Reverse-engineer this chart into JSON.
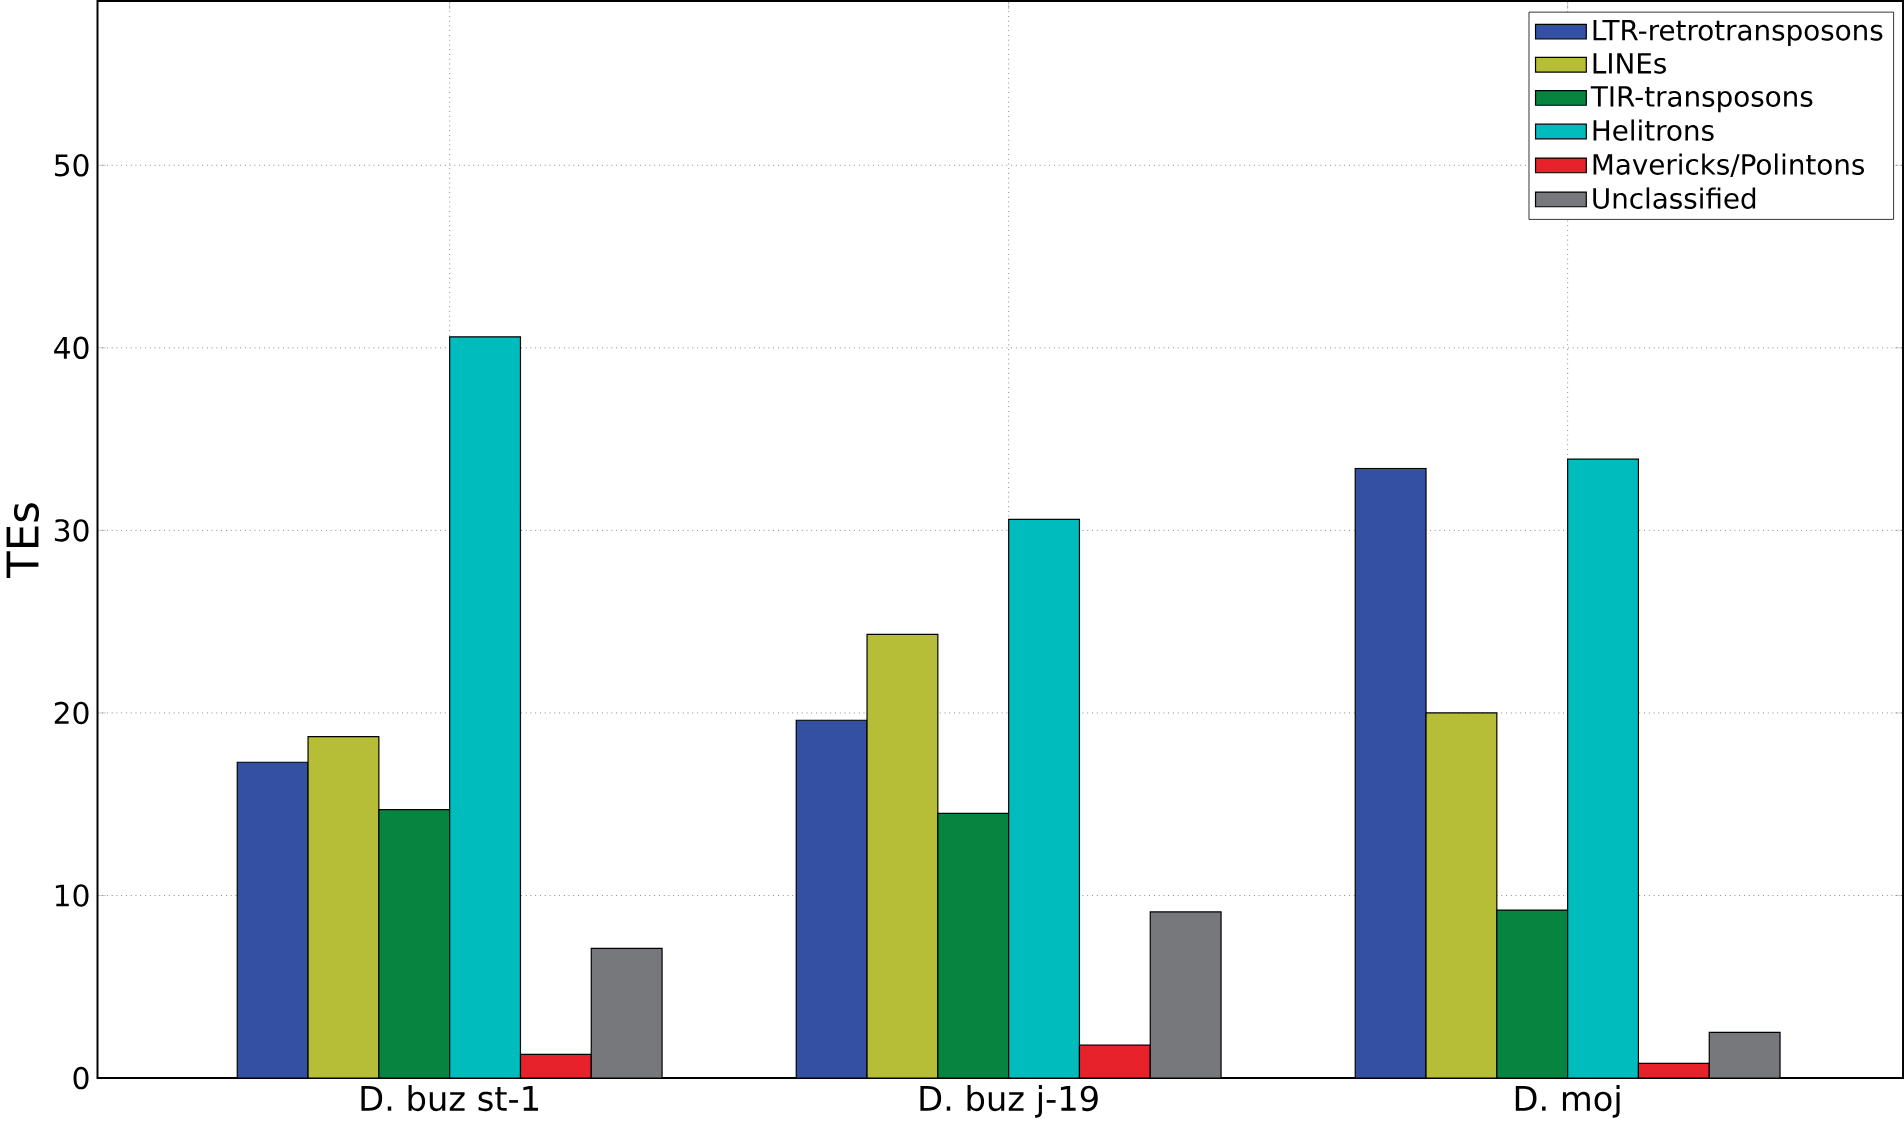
{
  "chart_data": {
    "type": "bar",
    "ylabel": "TEs",
    "categories": [
      "D. buz st-1",
      "D. buz j-19",
      "D. moj"
    ],
    "series": [
      {
        "name": "LTR-retrotransposons",
        "color": "#3450a3",
        "values": [
          17.3,
          19.6,
          33.4
        ]
      },
      {
        "name": "LINEs",
        "color": "#b5be36",
        "values": [
          18.7,
          24.3,
          20.0
        ]
      },
      {
        "name": "TIR-transposons",
        "color": "#088441",
        "values": [
          14.7,
          14.5,
          9.2
        ]
      },
      {
        "name": "Helitrons",
        "color": "#00bcbc",
        "values": [
          40.6,
          30.6,
          33.9
        ]
      },
      {
        "name": "Mavericks/Polintons",
        "color": "#e8222a",
        "values": [
          1.3,
          1.8,
          0.8
        ]
      },
      {
        "name": "Unclassified",
        "color": "#77787b",
        "values": [
          7.1,
          9.1,
          2.5
        ]
      }
    ],
    "ylim": [
      0,
      59
    ],
    "yticks": [
      0,
      10,
      20,
      30,
      40,
      50
    ],
    "grid": true,
    "legend": "top right"
  }
}
